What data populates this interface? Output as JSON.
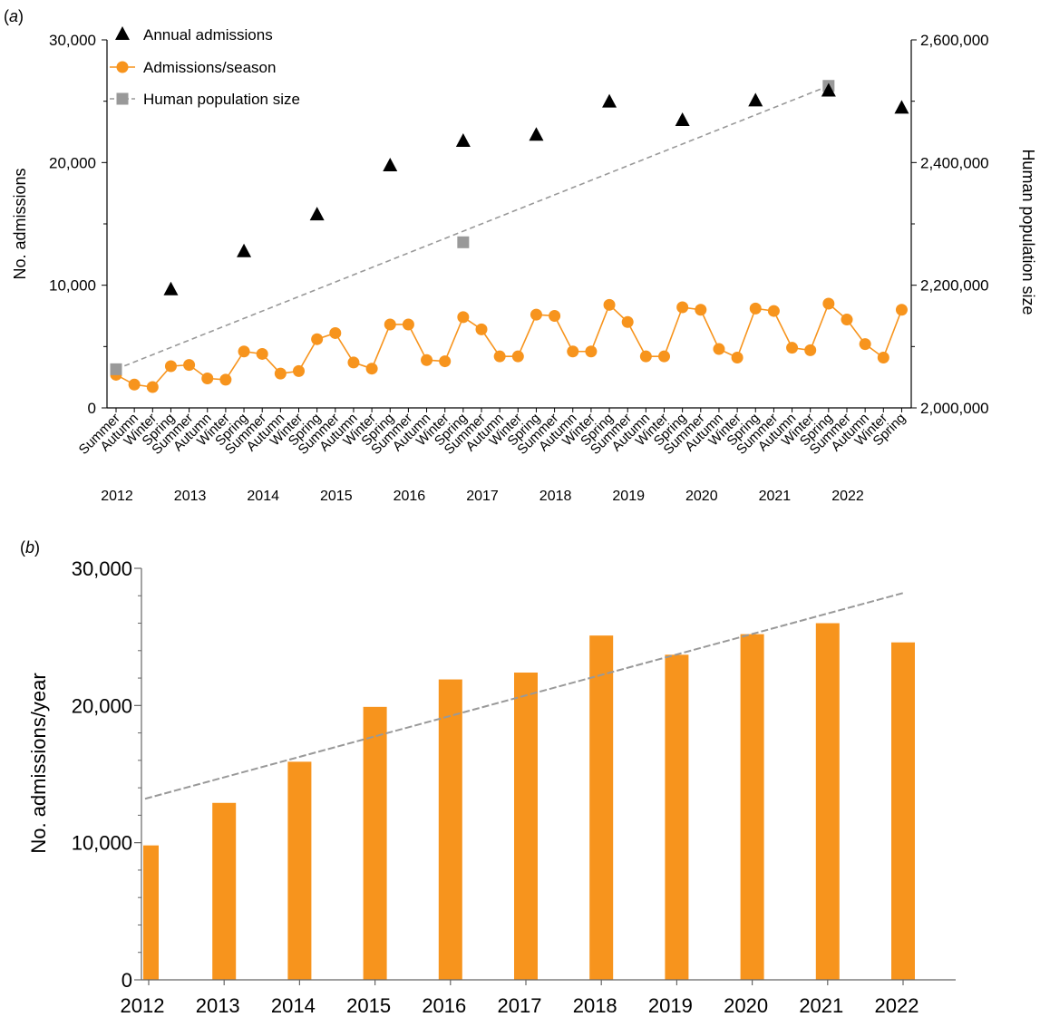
{
  "chart_data": [
    {
      "panel": "(a)",
      "type": "line",
      "panel_label_letter": "a",
      "legend": [
        "Annual admissions",
        "Admissions/season",
        "Human population size"
      ],
      "legend_position": "top-left",
      "ylabel_left": "No. admissions",
      "ylabel_right": "Human population size",
      "ylim_left": [
        0,
        30000
      ],
      "ylim_right": [
        2000000,
        2600000
      ],
      "yticks_left": [
        0,
        10000,
        20000,
        30000
      ],
      "ytick_labels_left": [
        "0",
        "10,000",
        "20,000",
        "30,000"
      ],
      "yticks_right": [
        2000000,
        2200000,
        2400000,
        2600000
      ],
      "ytick_labels_right": [
        "2,000,000",
        "2,200,000",
        "2,400,000",
        "2,600,000"
      ],
      "seasons": [
        "Summer",
        "Autumn",
        "Winter",
        "Spring",
        "Summer",
        "Autumn",
        "Winter",
        "Spring",
        "Summer",
        "Autumn",
        "Winter",
        "Spring",
        "Summer",
        "Autumn",
        "Winter",
        "Spring",
        "Summer",
        "Autumn",
        "Winter",
        "Spring",
        "Summer",
        "Autumn",
        "Winter",
        "Spring",
        "Summer",
        "Autumn",
        "Winter",
        "Spring",
        "Summer",
        "Autumn",
        "Winter",
        "Spring",
        "Summer",
        "Autumn",
        "Winter",
        "Spring",
        "Summer",
        "Autumn",
        "Winter",
        "Spring",
        "Summer",
        "Autumn",
        "Winter",
        "Spring"
      ],
      "years": [
        "2012",
        "2013",
        "2014",
        "2015",
        "2016",
        "2017",
        "2018",
        "2019",
        "2020",
        "2021",
        "2022"
      ],
      "series": [
        {
          "name": "Admissions/season",
          "axis": "left",
          "color": "#F7941D",
          "values": [
            2700,
            1900,
            1700,
            3400,
            3500,
            2400,
            2300,
            4600,
            4400,
            2800,
            3000,
            5600,
            6100,
            3700,
            3200,
            6800,
            6800,
            3900,
            3800,
            7400,
            6400,
            4200,
            4200,
            7600,
            7500,
            4600,
            4600,
            8400,
            7000,
            4200,
            4200,
            8200,
            8000,
            4800,
            4100,
            8100,
            7900,
            4900,
            4700,
            8500,
            7200,
            5200,
            4100,
            8000
          ]
        },
        {
          "name": "Annual admissions",
          "axis": "left",
          "color": "#000000",
          "season_index": [
            3,
            7,
            11,
            15,
            19,
            23,
            27,
            31,
            35,
            39,
            43
          ],
          "values": [
            9700,
            12800,
            15800,
            19800,
            21800,
            22300,
            25000,
            23500,
            25100,
            25900,
            24500
          ]
        },
        {
          "name": "Human population size",
          "axis": "right",
          "color": "#999999",
          "points_season_index": [
            0,
            19,
            39
          ],
          "points": [
            2063000,
            2270000,
            2525000
          ],
          "line_color": "#999999"
        }
      ]
    },
    {
      "panel": "(b)",
      "type": "bar",
      "panel_label_letter": "b",
      "categories": [
        "2012",
        "2013",
        "2014",
        "2015",
        "2016",
        "2017",
        "2018",
        "2019",
        "2020",
        "2021",
        "2022"
      ],
      "values": [
        9800,
        12900,
        15900,
        19900,
        21900,
        22400,
        25100,
        23700,
        25200,
        26000,
        24600
      ],
      "bar_color": "#F7941D",
      "trend_line": {
        "start": 13200,
        "end": 28200,
        "color": "#999999"
      },
      "ylabel": "No. admissions/year",
      "xlabel": "",
      "ylim": [
        0,
        30000
      ],
      "yticks": [
        0,
        10000,
        20000,
        30000
      ],
      "ytick_labels": [
        "0",
        "10,000",
        "20,000",
        "30,000"
      ]
    }
  ]
}
